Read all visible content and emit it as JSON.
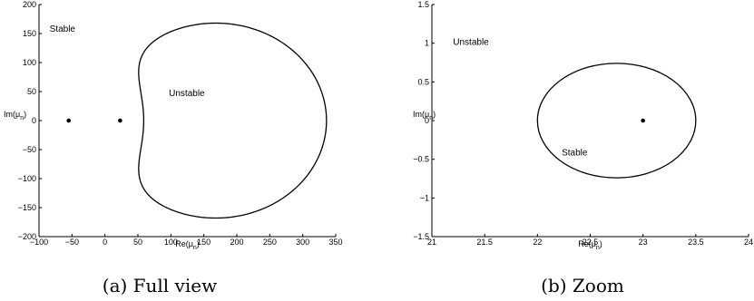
{
  "chart_data": [
    {
      "type": "scatter",
      "xlim": [
        -100,
        350
      ],
      "ylim": [
        -200,
        200
      ],
      "xticks": [
        -100,
        -50,
        0,
        50,
        100,
        150,
        200,
        250,
        300,
        350
      ],
      "yticks": [
        -200,
        -150,
        -100,
        -50,
        0,
        50,
        100,
        150,
        200
      ],
      "xlabel": "Re(μ_n)",
      "ylabel": "Im(μ_n)",
      "caption": "(a) Full view",
      "points": [
        {
          "x": -55,
          "y": 0
        },
        {
          "x": 23,
          "y": 0
        }
      ],
      "boundary": {
        "shape": "closed-curve",
        "vertex_x": 0,
        "center_x": 168,
        "half_width": 168,
        "center_y": 0,
        "half_height": 168
      },
      "annotations": [
        {
          "text": "Stable",
          "x": -84,
          "y": 153
        },
        {
          "text": "Unstable",
          "x": 97,
          "y": 42
        }
      ],
      "grid": false
    },
    {
      "type": "scatter",
      "xlim": [
        21,
        24
      ],
      "ylim": [
        -1.5,
        1.5
      ],
      "xticks": [
        21,
        21.5,
        22,
        22.5,
        23,
        23.5,
        24
      ],
      "yticks": [
        -1.5,
        -1,
        -0.5,
        0,
        0.5,
        1,
        1.5
      ],
      "xlabel": "Re(μ_n)",
      "ylabel": "Im(μ_n)",
      "caption": "(b) Zoom",
      "points": [
        {
          "x": 23,
          "y": 0
        }
      ],
      "boundary": {
        "shape": "ellipse",
        "center_x": 22.75,
        "half_width": 0.75,
        "center_y": 0,
        "half_height": 0.74
      },
      "annotations": [
        {
          "text": "Unstable",
          "x": 21.2,
          "y": 0.98
        },
        {
          "text": "Stable",
          "x": 22.23,
          "y": -0.45
        }
      ],
      "grid": false
    }
  ]
}
